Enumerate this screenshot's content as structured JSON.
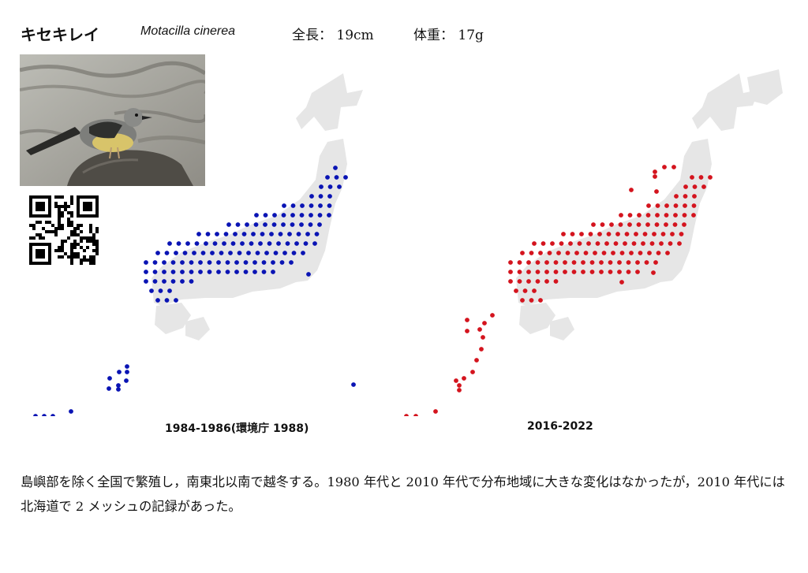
{
  "header": {
    "japanese_name": "キセキレイ",
    "scientific_name": "Motacilla cinerea",
    "length": "全長： 19cm",
    "weight": "体重： 17g"
  },
  "colors": {
    "past_dots": "#0a14b4",
    "recent_dots": "#d4141e",
    "land": "#e6e6e6"
  },
  "maps": {
    "past": {
      "caption": "1984-1986(環境庁 1988)"
    },
    "recent": {
      "caption": "2016-2022"
    }
  },
  "description": "島嶼部を除く全国で繁殖し，南東北以南で越冬する。1980 年代と 2010 年代で分布地域に大きな変化はなかったが，2010 年代には北海道で 2 メッシュの記録があった。"
}
